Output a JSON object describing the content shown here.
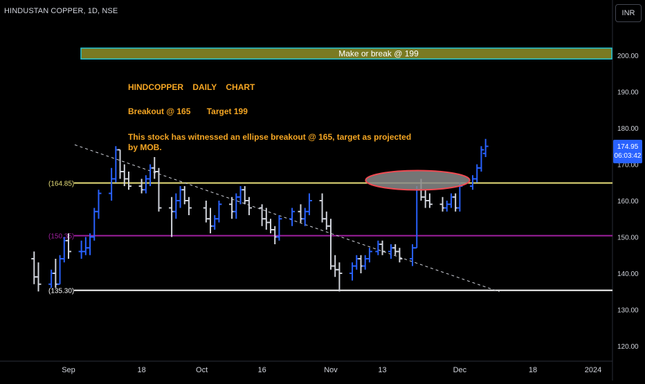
{
  "header": {
    "symbol_title": "HINDUSTAN COPPER, 1D, NSE",
    "currency": "INR"
  },
  "price_tag": {
    "price": "174.95",
    "countdown": "06:03:42"
  },
  "annotations": {
    "title": "HINDCOPPER    DAILY    CHART",
    "breakout": "Breakout @ 165       Target 199",
    "description": "This stock has witnessed an ellipse breakout @ 165, target as projected by MOB.",
    "banner": "Make or break @ 199"
  },
  "chart_data": {
    "type": "ohlc",
    "title": "HINDUSTAN COPPER, 1D, NSE",
    "y_range": [
      115,
      205
    ],
    "x_range": [
      "2023-08-24",
      "2024-01-05"
    ],
    "y_axis_ticks": [
      "120.00",
      "130.00",
      "140.00",
      "150.00",
      "160.00",
      "170.00",
      "180.00",
      "190.00",
      "200.00"
    ],
    "x_axis_ticks": [
      {
        "label": "Sep",
        "date": "2023-09-01"
      },
      {
        "label": "18",
        "date": "2023-09-18"
      },
      {
        "label": "Oct",
        "date": "2023-10-02"
      },
      {
        "label": "16",
        "date": "2023-10-16"
      },
      {
        "label": "Nov",
        "date": "2023-11-01"
      },
      {
        "label": "13",
        "date": "2023-11-13"
      },
      {
        "label": "Dec",
        "date": "2023-12-01"
      },
      {
        "label": "18",
        "date": "2023-12-18"
      },
      {
        "label": "2024",
        "date": "2024-01-01"
      }
    ],
    "horizontal_levels": [
      {
        "label": "(164.85)",
        "value": 164.85,
        "color": "#e8e07a"
      },
      {
        "label": "(150.35)",
        "value": 150.35,
        "color": "#a020a0"
      },
      {
        "label": "(135.30)",
        "value": 135.3,
        "color": "#ffffff"
      }
    ],
    "trendline": {
      "from": {
        "date": "2023-09-01",
        "value": 175
      },
      "to": {
        "date": "2023-11-27",
        "value": 135.3
      }
    },
    "ellipse": {
      "date_from": "2023-11-12",
      "date_to": "2023-11-23",
      "center_value": 166
    },
    "target_zone": {
      "from": 199,
      "to": 202
    },
    "colors": {
      "up": "#2962ff",
      "down": "#d1d4dc",
      "grid_line": "#2a2e39"
    },
    "candles": [
      {
        "date": "2023-08-24",
        "o": 144,
        "h": 146,
        "l": 137,
        "c": 139
      },
      {
        "date": "2023-08-25",
        "o": 139,
        "h": 143,
        "l": 135,
        "c": 137
      },
      {
        "date": "2023-08-28",
        "o": 137,
        "h": 141,
        "l": 136,
        "c": 140
      },
      {
        "date": "2023-08-29",
        "o": 140,
        "h": 144,
        "l": 136,
        "c": 137
      },
      {
        "date": "2023-08-30",
        "o": 137,
        "h": 145,
        "l": 137,
        "c": 144
      },
      {
        "date": "2023-08-31",
        "o": 144,
        "h": 150,
        "l": 143,
        "c": 149
      },
      {
        "date": "2023-09-01",
        "o": 149,
        "h": 151,
        "l": 144,
        "c": 146
      },
      {
        "date": "2023-09-04",
        "o": 146,
        "h": 149,
        "l": 144,
        "c": 146
      },
      {
        "date": "2023-09-05",
        "o": 146,
        "h": 150,
        "l": 145,
        "c": 147
      },
      {
        "date": "2023-09-06",
        "o": 147,
        "h": 151,
        "l": 145,
        "c": 150
      },
      {
        "date": "2023-09-07",
        "o": 150,
        "h": 158,
        "l": 149,
        "c": 157
      },
      {
        "date": "2023-09-08",
        "o": 157,
        "h": 163,
        "l": 155,
        "c": 162
      },
      {
        "date": "2023-09-11",
        "o": 162,
        "h": 169,
        "l": 160,
        "c": 166
      },
      {
        "date": "2023-09-12",
        "o": 166,
        "h": 175,
        "l": 165,
        "c": 174
      },
      {
        "date": "2023-09-13",
        "o": 174,
        "h": 174,
        "l": 166,
        "c": 168
      },
      {
        "date": "2023-09-14",
        "o": 168,
        "h": 170,
        "l": 164,
        "c": 166
      },
      {
        "date": "2023-09-15",
        "o": 166,
        "h": 168,
        "l": 163,
        "c": 164
      },
      {
        "date": "2023-09-18",
        "o": 164,
        "h": 166,
        "l": 162,
        "c": 163
      },
      {
        "date": "2023-09-19",
        "o": 163,
        "h": 167,
        "l": 162,
        "c": 166
      },
      {
        "date": "2023-09-20",
        "o": 166,
        "h": 170,
        "l": 164,
        "c": 169
      },
      {
        "date": "2023-09-21",
        "o": 169,
        "h": 172,
        "l": 166,
        "c": 168
      },
      {
        "date": "2023-09-22",
        "o": 168,
        "h": 169,
        "l": 157,
        "c": 158
      },
      {
        "date": "2023-09-25",
        "o": 158,
        "h": 161,
        "l": 150,
        "c": 157
      },
      {
        "date": "2023-09-26",
        "o": 157,
        "h": 162,
        "l": 155,
        "c": 160
      },
      {
        "date": "2023-09-27",
        "o": 160,
        "h": 164,
        "l": 158,
        "c": 163
      },
      {
        "date": "2023-09-28",
        "o": 163,
        "h": 164,
        "l": 159,
        "c": 160
      },
      {
        "date": "2023-09-29",
        "o": 160,
        "h": 161,
        "l": 156,
        "c": 158
      },
      {
        "date": "2023-10-03",
        "o": 158,
        "h": 160,
        "l": 154,
        "c": 155
      },
      {
        "date": "2023-10-04",
        "o": 155,
        "h": 158,
        "l": 151,
        "c": 153
      },
      {
        "date": "2023-10-05",
        "o": 153,
        "h": 156,
        "l": 152,
        "c": 155
      },
      {
        "date": "2023-10-06",
        "o": 155,
        "h": 160,
        "l": 154,
        "c": 159
      },
      {
        "date": "2023-10-09",
        "o": 159,
        "h": 161,
        "l": 155,
        "c": 157
      },
      {
        "date": "2023-10-10",
        "o": 157,
        "h": 162,
        "l": 155,
        "c": 161
      },
      {
        "date": "2023-10-11",
        "o": 161,
        "h": 164,
        "l": 159,
        "c": 163
      },
      {
        "date": "2023-10-12",
        "o": 163,
        "h": 164,
        "l": 159,
        "c": 160
      },
      {
        "date": "2023-10-13",
        "o": 160,
        "h": 161,
        "l": 156,
        "c": 158
      },
      {
        "date": "2023-10-16",
        "o": 158,
        "h": 159,
        "l": 153,
        "c": 155
      },
      {
        "date": "2023-10-17",
        "o": 155,
        "h": 158,
        "l": 152,
        "c": 154
      },
      {
        "date": "2023-10-18",
        "o": 154,
        "h": 155,
        "l": 151,
        "c": 152
      },
      {
        "date": "2023-10-19",
        "o": 152,
        "h": 153,
        "l": 148,
        "c": 150
      },
      {
        "date": "2023-10-20",
        "o": 150,
        "h": 156,
        "l": 149,
        "c": 155
      },
      {
        "date": "2023-10-23",
        "o": 155,
        "h": 158,
        "l": 153,
        "c": 157
      },
      {
        "date": "2023-10-25",
        "o": 157,
        "h": 159,
        "l": 154,
        "c": 155
      },
      {
        "date": "2023-10-26",
        "o": 155,
        "h": 158,
        "l": 153,
        "c": 157
      },
      {
        "date": "2023-10-27",
        "o": 157,
        "h": 162,
        "l": 156,
        "c": 160
      },
      {
        "date": "2023-10-30",
        "o": 160,
        "h": 162,
        "l": 154,
        "c": 155
      },
      {
        "date": "2023-10-31",
        "o": 155,
        "h": 157,
        "l": 152,
        "c": 153
      },
      {
        "date": "2023-11-01",
        "o": 153,
        "h": 155,
        "l": 141,
        "c": 142
      },
      {
        "date": "2023-11-02",
        "o": 142,
        "h": 145,
        "l": 139,
        "c": 141
      },
      {
        "date": "2023-11-03",
        "o": 141,
        "h": 143,
        "l": 135,
        "c": 140
      },
      {
        "date": "2023-11-06",
        "o": 140,
        "h": 143,
        "l": 138,
        "c": 142
      },
      {
        "date": "2023-11-07",
        "o": 142,
        "h": 145,
        "l": 141,
        "c": 144
      },
      {
        "date": "2023-11-08",
        "o": 144,
        "h": 145,
        "l": 140,
        "c": 142
      },
      {
        "date": "2023-11-09",
        "o": 142,
        "h": 145,
        "l": 141,
        "c": 144
      },
      {
        "date": "2023-11-10",
        "o": 144,
        "h": 147,
        "l": 143,
        "c": 146
      },
      {
        "date": "2023-11-12",
        "o": 146,
        "h": 149,
        "l": 145,
        "c": 148
      },
      {
        "date": "2023-11-13",
        "o": 148,
        "h": 149,
        "l": 145,
        "c": 146
      },
      {
        "date": "2023-11-15",
        "o": 146,
        "h": 148,
        "l": 144,
        "c": 147
      },
      {
        "date": "2023-11-16",
        "o": 147,
        "h": 148,
        "l": 145,
        "c": 146
      },
      {
        "date": "2023-11-17",
        "o": 146,
        "h": 147,
        "l": 143,
        "c": 144
      },
      {
        "date": "2023-11-20",
        "o": 144,
        "h": 148,
        "l": 142,
        "c": 147
      },
      {
        "date": "2023-11-21",
        "o": 147,
        "h": 164,
        "l": 147,
        "c": 163
      },
      {
        "date": "2023-11-22",
        "o": 163,
        "h": 166,
        "l": 160,
        "c": 161
      },
      {
        "date": "2023-11-23",
        "o": 161,
        "h": 163,
        "l": 158,
        "c": 160
      },
      {
        "date": "2023-11-24",
        "o": 160,
        "h": 162,
        "l": 158,
        "c": 159
      },
      {
        "date": "2023-11-27",
        "o": 159,
        "h": 161,
        "l": 157,
        "c": 158
      },
      {
        "date": "2023-11-28",
        "o": 158,
        "h": 160,
        "l": 157,
        "c": 159
      },
      {
        "date": "2023-11-29",
        "o": 159,
        "h": 162,
        "l": 158,
        "c": 161
      },
      {
        "date": "2023-11-30",
        "o": 161,
        "h": 162,
        "l": 157,
        "c": 158
      },
      {
        "date": "2023-12-01",
        "o": 158,
        "h": 165,
        "l": 157,
        "c": 164
      },
      {
        "date": "2023-12-04",
        "o": 164,
        "h": 167,
        "l": 163,
        "c": 166
      },
      {
        "date": "2023-12-05",
        "o": 166,
        "h": 170,
        "l": 165,
        "c": 169
      },
      {
        "date": "2023-12-06",
        "o": 169,
        "h": 175,
        "l": 168,
        "c": 174
      },
      {
        "date": "2023-12-07",
        "o": 173,
        "h": 177,
        "l": 172,
        "c": 174.95
      }
    ]
  }
}
